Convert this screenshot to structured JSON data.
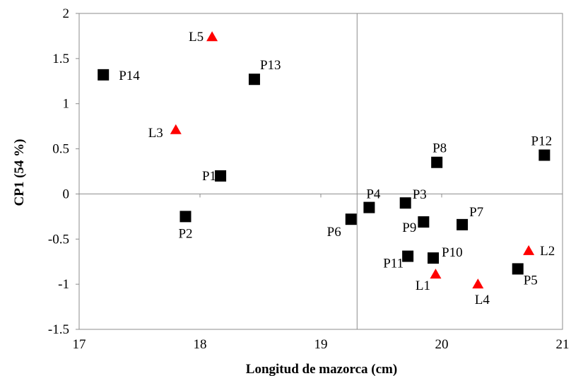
{
  "chart_data": {
    "type": "scatter",
    "xlabel": "Longitud de mazorca (cm)",
    "ylabel": "CP1 (54 %)",
    "xlim": [
      17,
      21
    ],
    "ylim": [
      -1.5,
      2
    ],
    "xticks": [
      "17",
      "18",
      "19",
      "20",
      "21"
    ],
    "yticks": [
      "2",
      "1.5",
      "1",
      "0.5",
      "0",
      "-0.5",
      "-1",
      "-1.5"
    ],
    "reference_lines": {
      "x": 19.3,
      "y": 0
    },
    "grid": false,
    "colors": {
      "square": "#000000",
      "triangle": "#ff0000"
    },
    "series": [
      {
        "marker": "square",
        "points": [
          {
            "label": "P1",
            "x": 18.17,
            "y": 0.2
          },
          {
            "label": "P2",
            "x": 17.88,
            "y": -0.25
          },
          {
            "label": "P3",
            "x": 19.7,
            "y": -0.1
          },
          {
            "label": "P4",
            "x": 19.4,
            "y": -0.15
          },
          {
            "label": "P5",
            "x": 20.63,
            "y": -0.83
          },
          {
            "label": "P6",
            "x": 19.25,
            "y": -0.28
          },
          {
            "label": "P7",
            "x": 20.17,
            "y": -0.34
          },
          {
            "label": "P8",
            "x": 19.96,
            "y": 0.35
          },
          {
            "label": "P9",
            "x": 19.85,
            "y": -0.31
          },
          {
            "label": "P10",
            "x": 19.93,
            "y": -0.71
          },
          {
            "label": "P11",
            "x": 19.72,
            "y": -0.69
          },
          {
            "label": "P12",
            "x": 20.85,
            "y": 0.43
          },
          {
            "label": "P13",
            "x": 18.45,
            "y": 1.27
          },
          {
            "label": "P14",
            "x": 17.2,
            "y": 1.32
          }
        ]
      },
      {
        "marker": "triangle",
        "points": [
          {
            "label": "L1",
            "x": 19.95,
            "y": -0.89
          },
          {
            "label": "L2",
            "x": 20.72,
            "y": -0.63
          },
          {
            "label": "L3",
            "x": 17.8,
            "y": 0.71
          },
          {
            "label": "L4",
            "x": 20.3,
            "y": -1.0
          },
          {
            "label": "L5",
            "x": 18.1,
            "y": 1.74
          }
        ]
      }
    ]
  }
}
